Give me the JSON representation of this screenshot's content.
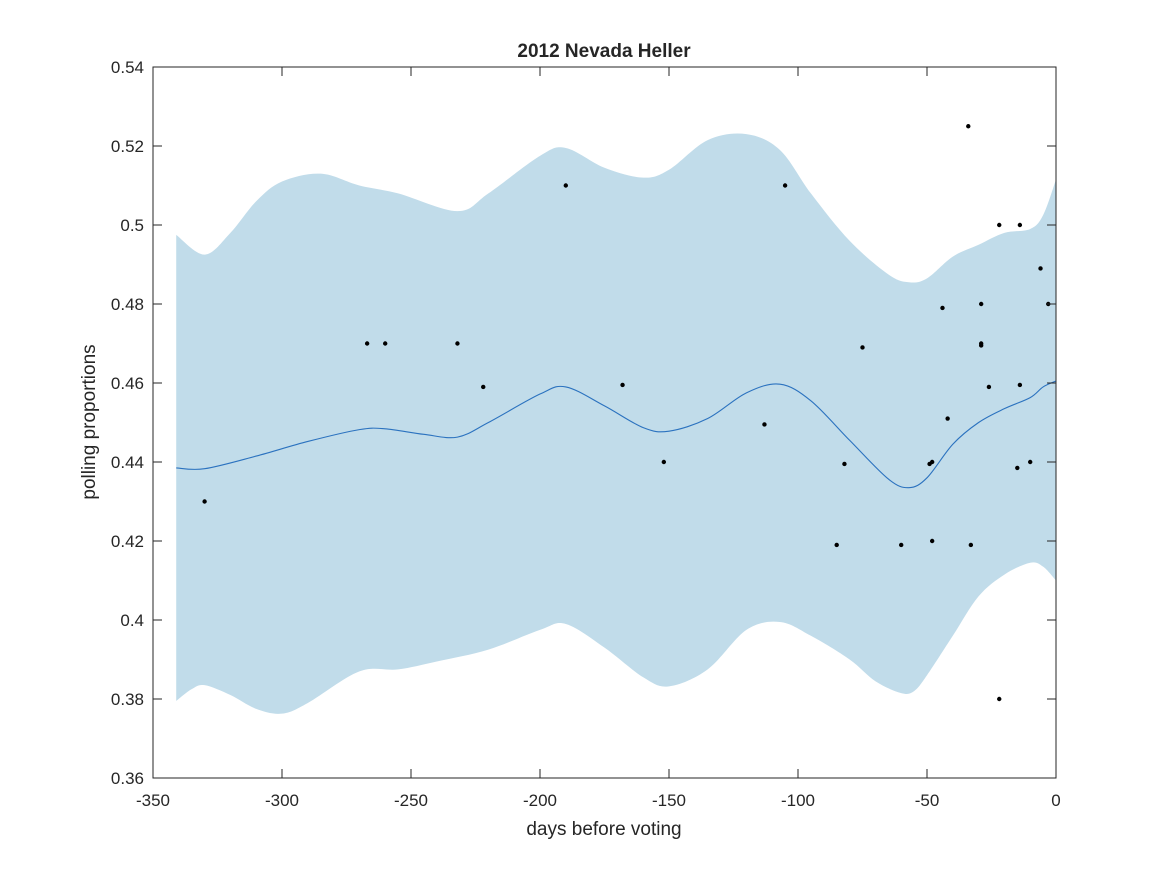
{
  "chart_data": {
    "type": "line",
    "title": "2012 Nevada Heller",
    "xlabel": "days before voting",
    "ylabel": "polling proportions",
    "xlim": [
      -350,
      0
    ],
    "ylim": [
      0.36,
      0.54
    ],
    "xticks": [
      -350,
      -300,
      -250,
      -200,
      -150,
      -100,
      -50,
      0
    ],
    "xtick_labels": [
      "-350",
      "-300",
      "-250",
      "-200",
      "-150",
      "-100",
      "-50",
      "0"
    ],
    "yticks": [
      0.36,
      0.38,
      0.4,
      0.42,
      0.44,
      0.46,
      0.48,
      0.5,
      0.52,
      0.54
    ],
    "ytick_labels": [
      "0.36",
      "0.38",
      "0.4",
      "0.42",
      "0.44",
      "0.46",
      "0.48",
      "0.5",
      "0.52",
      "0.54"
    ],
    "grid": false,
    "colors": {
      "band": "#c1dcea",
      "line": "#2b72bf",
      "points": "#000000",
      "axis": "#262626"
    },
    "mean_line": {
      "x": [
        -341,
        -330,
        -310,
        -290,
        -270,
        -260,
        -245,
        -232,
        -220,
        -200,
        -190,
        -175,
        -160,
        -150,
        -135,
        -120,
        -107,
        -95,
        -80,
        -65,
        -57,
        -50,
        -40,
        -30,
        -20,
        -10,
        -5,
        0
      ],
      "y": [
        0.4385,
        0.4383,
        0.4415,
        0.4452,
        0.4482,
        0.4484,
        0.447,
        0.4463,
        0.45,
        0.4572,
        0.459,
        0.4542,
        0.4487,
        0.4478,
        0.451,
        0.4575,
        0.4597,
        0.4555,
        0.4455,
        0.4357,
        0.4335,
        0.436,
        0.4445,
        0.45,
        0.4535,
        0.4563,
        0.459,
        0.4605
      ]
    },
    "band_upper": {
      "x": [
        -341,
        -330,
        -320,
        -310,
        -300,
        -285,
        -270,
        -255,
        -232,
        -220,
        -200,
        -190,
        -175,
        -160,
        -150,
        -135,
        -120,
        -107,
        -95,
        -80,
        -65,
        -57,
        -50,
        -40,
        -30,
        -20,
        -10,
        -5,
        0
      ],
      "y": [
        0.4975,
        0.4925,
        0.498,
        0.506,
        0.511,
        0.513,
        0.51,
        0.508,
        0.5035,
        0.508,
        0.5175,
        0.5195,
        0.5145,
        0.512,
        0.514,
        0.5215,
        0.523,
        0.519,
        0.508,
        0.496,
        0.4875,
        0.4855,
        0.4865,
        0.492,
        0.495,
        0.498,
        0.499,
        0.5025,
        0.5115
      ]
    },
    "band_lower": {
      "x": [
        -341,
        -335,
        -330,
        -320,
        -310,
        -300,
        -290,
        -270,
        -255,
        -240,
        -220,
        -200,
        -190,
        -175,
        -160,
        -150,
        -135,
        -120,
        -107,
        -95,
        -80,
        -70,
        -60,
        -55,
        -50,
        -40,
        -30,
        -20,
        -10,
        -5,
        0
      ],
      "y": [
        0.3795,
        0.3825,
        0.3835,
        0.381,
        0.3775,
        0.3763,
        0.379,
        0.387,
        0.3875,
        0.3895,
        0.3925,
        0.3975,
        0.399,
        0.393,
        0.3855,
        0.3832,
        0.3875,
        0.3975,
        0.3995,
        0.396,
        0.39,
        0.3845,
        0.3815,
        0.382,
        0.386,
        0.396,
        0.406,
        0.4115,
        0.4145,
        0.4135,
        0.41
      ]
    },
    "points": [
      {
        "x": -330,
        "y": 0.43
      },
      {
        "x": -267,
        "y": 0.47
      },
      {
        "x": -260,
        "y": 0.47
      },
      {
        "x": -232,
        "y": 0.47
      },
      {
        "x": -222,
        "y": 0.459
      },
      {
        "x": -190,
        "y": 0.51
      },
      {
        "x": -168,
        "y": 0.4595
      },
      {
        "x": -152,
        "y": 0.44
      },
      {
        "x": -113,
        "y": 0.4495
      },
      {
        "x": -105,
        "y": 0.51
      },
      {
        "x": -85,
        "y": 0.419
      },
      {
        "x": -82,
        "y": 0.4395
      },
      {
        "x": -75,
        "y": 0.469
      },
      {
        "x": -60,
        "y": 0.419
      },
      {
        "x": -49,
        "y": 0.4395
      },
      {
        "x": -48,
        "y": 0.44
      },
      {
        "x": -48,
        "y": 0.42
      },
      {
        "x": -44,
        "y": 0.479
      },
      {
        "x": -42,
        "y": 0.451
      },
      {
        "x": -34,
        "y": 0.525
      },
      {
        "x": -33,
        "y": 0.419
      },
      {
        "x": -29,
        "y": 0.47
      },
      {
        "x": -29,
        "y": 0.4695
      },
      {
        "x": -29,
        "y": 0.48
      },
      {
        "x": -26,
        "y": 0.459
      },
      {
        "x": -22,
        "y": 0.5
      },
      {
        "x": -22,
        "y": 0.38
      },
      {
        "x": -15,
        "y": 0.4385
      },
      {
        "x": -14,
        "y": 0.4595
      },
      {
        "x": -14,
        "y": 0.5
      },
      {
        "x": -10,
        "y": 0.44
      },
      {
        "x": -6,
        "y": 0.489
      },
      {
        "x": -3,
        "y": 0.48
      }
    ]
  }
}
